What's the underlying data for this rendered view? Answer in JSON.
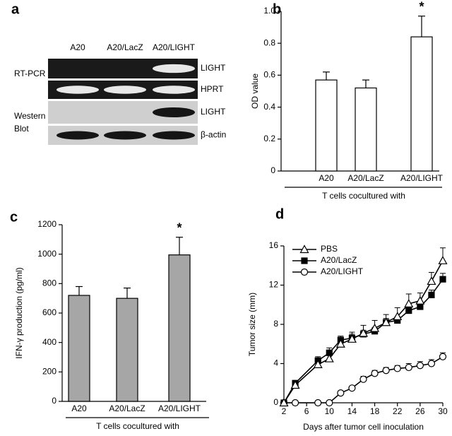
{
  "blot": {
    "panel_label": "a",
    "lanes": [
      "A20",
      "A20/LacZ",
      "A20/LIGHT"
    ],
    "groups": [
      {
        "lines": [
          "RT-PCR"
        ]
      },
      {
        "lines": [
          "Western",
          "Blot"
        ]
      }
    ],
    "rows": [
      {
        "label": "LIGHT",
        "bands": [
          false,
          false,
          true
        ]
      },
      {
        "label": "HPRT",
        "bands": [
          true,
          true,
          true
        ]
      },
      {
        "label": "LIGHT",
        "bands": [
          false,
          false,
          true
        ]
      },
      {
        "label": "β-actin",
        "bands": [
          true,
          true,
          true
        ]
      }
    ]
  },
  "chart_data": [
    {
      "type": "bar",
      "panel_label": "b",
      "ylabel": "OD value",
      "xlabel": "T cells cocultured with",
      "categories": [
        "A20",
        "A20/LacZ",
        "A20/LIGHT"
      ],
      "values": [
        0.57,
        0.52,
        0.84
      ],
      "errors": [
        0.05,
        0.05,
        0.13
      ],
      "markers": [
        null,
        null,
        "*"
      ],
      "color": "#ffffff",
      "ylim": [
        0,
        1
      ],
      "yticks": [
        0,
        0.2,
        0.4,
        0.6,
        0.8,
        {
          "value": 1,
          "label": "1.0"
        }
      ]
    },
    {
      "type": "bar",
      "panel_label": "c",
      "ylabel": "IFN-γ production (pg/ml)",
      "xlabel": "T cells cocultured with",
      "categories": [
        "A20",
        "A20/LacZ",
        "A20/LIGHT"
      ],
      "values": [
        720,
        700,
        995
      ],
      "errors": [
        60,
        70,
        120
      ],
      "markers": [
        null,
        null,
        "*"
      ],
      "color": "#a6a6a6",
      "ylim": [
        0,
        1200
      ],
      "yticks": [
        0,
        200,
        400,
        600,
        800,
        1000,
        1200
      ]
    },
    {
      "type": "line",
      "panel_label": "d",
      "ylabel": "Tumor size (mm)",
      "xlabel": "Days after tumor cell inoculation",
      "x": [
        2,
        4,
        8,
        10,
        12,
        14,
        16,
        18,
        20,
        22,
        24,
        26,
        28,
        30
      ],
      "series": [
        {
          "name": "PBS",
          "marker": "triangle-open",
          "color": "#000000",
          "values": [
            0,
            1.8,
            3.9,
            4.5,
            6.0,
            6.5,
            7.1,
            7.6,
            8.2,
            8.8,
            10.1,
            10.4,
            12.4,
            14.5
          ],
          "errors": [
            0,
            0.2,
            0.5,
            0.6,
            0.6,
            0.7,
            0.8,
            0.8,
            0.8,
            0.9,
            1.0,
            0.8,
            0.9,
            1.3
          ]
        },
        {
          "name": "A20/LacZ",
          "marker": "square",
          "color": "#000000",
          "values": [
            0,
            2.0,
            4.3,
            5.1,
            6.4,
            6.6,
            7.0,
            7.3,
            8.2,
            8.4,
            9.4,
            9.8,
            11.0,
            12.6
          ],
          "errors": [
            0,
            0.2,
            0.4,
            0.5,
            0.4,
            0.4,
            0.4,
            0.4,
            0.4,
            0.4,
            0.4,
            0.4,
            0.5,
            0.6
          ]
        },
        {
          "name": "A20/LIGHT",
          "marker": "circle-open",
          "color": "#000000",
          "values": [
            0,
            0,
            0,
            0,
            1.0,
            1.5,
            2.4,
            3.0,
            3.3,
            3.5,
            3.6,
            3.8,
            4.0,
            4.7
          ],
          "errors": [
            0,
            0,
            0,
            0,
            0.2,
            0.2,
            0.3,
            0.3,
            0.3,
            0.3,
            0.4,
            0.4,
            0.4,
            0.4
          ]
        }
      ],
      "legend": "upper-left",
      "xlim": [
        2,
        30
      ],
      "xticks": [
        2,
        6,
        10,
        14,
        18,
        22,
        26,
        30
      ],
      "ylim": [
        0,
        16
      ],
      "yticks": [
        0,
        4,
        8,
        12,
        16
      ]
    }
  ]
}
